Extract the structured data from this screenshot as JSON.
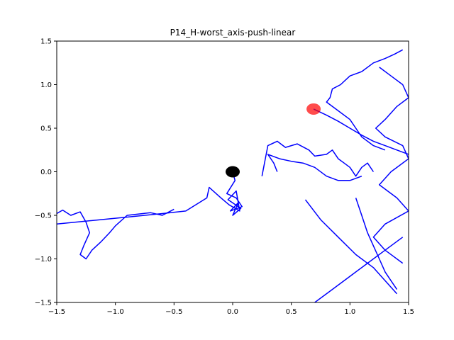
{
  "chart_data": {
    "type": "line",
    "title": "P14_H-worst_axis-push-linear",
    "xlabel": "",
    "ylabel": "",
    "xlim": [
      -1.5,
      1.5
    ],
    "ylim": [
      -1.5,
      1.5
    ],
    "grid": false,
    "x_ticks": [
      "−1.5",
      "−1.0",
      "−0.5",
      "0.0",
      "0.5",
      "1.0",
      "1.5"
    ],
    "y_ticks": [
      "−1.5",
      "−1.0",
      "−0.5",
      "0.0",
      "0.5",
      "1.0",
      "1.5"
    ],
    "x_tick_values": [
      -1.5,
      -1.0,
      -0.5,
      0.0,
      0.5,
      1.0,
      1.5
    ],
    "y_tick_values": [
      -1.5,
      -1.0,
      -0.5,
      0.0,
      0.5,
      1.0,
      1.5
    ],
    "colors": {
      "path": "#0000ff",
      "start": "#000000",
      "goal": "#ff0000"
    },
    "start_marker": {
      "x": 0.0,
      "y": 0.0
    },
    "goal_marker": {
      "x": 0.69,
      "y": 0.72
    },
    "series": [
      {
        "x": [
          0.0,
          0.02,
          -0.05,
          0.03,
          0.08,
          -0.02,
          0.05,
          0.0,
          0.07,
          -0.04,
          0.03,
          0.06,
          -0.03,
          -0.1,
          -0.2,
          -0.22,
          -0.4,
          -0.6,
          -0.9,
          -1.2,
          -1.5
        ],
        "y": [
          0.0,
          -0.1,
          -0.25,
          -0.3,
          -0.4,
          -0.45,
          -0.35,
          -0.5,
          -0.42,
          -0.32,
          -0.22,
          -0.45,
          -0.38,
          -0.3,
          -0.18,
          -0.3,
          -0.45,
          -0.48,
          -0.52,
          -0.56,
          -0.6
        ]
      },
      {
        "x": [
          -1.5,
          -1.45,
          -1.38,
          -1.3,
          -1.25,
          -1.22,
          -1.27,
          -1.3,
          -1.25,
          -1.2,
          -1.12,
          -1.05,
          -1.0,
          -0.9,
          -0.7,
          -0.6,
          -0.5
        ],
        "y": [
          -0.48,
          -0.44,
          -0.5,
          -0.46,
          -0.58,
          -0.7,
          -0.85,
          -0.95,
          -1.0,
          -0.9,
          -0.8,
          -0.7,
          -0.62,
          -0.5,
          -0.47,
          -0.5,
          -0.43
        ]
      },
      {
        "x": [
          0.25,
          0.3,
          0.38,
          0.45,
          0.55,
          0.65,
          0.7,
          0.8,
          0.85,
          0.9,
          0.95,
          1.0,
          1.05,
          1.1,
          1.15,
          1.2
        ],
        "y": [
          -0.05,
          0.3,
          0.35,
          0.28,
          0.32,
          0.25,
          0.18,
          0.2,
          0.25,
          0.15,
          0.1,
          0.05,
          -0.05,
          0.05,
          0.1,
          0.0
        ]
      },
      {
        "x": [
          0.38,
          0.35,
          0.3,
          0.4,
          0.5,
          0.6,
          0.7,
          0.8,
          0.9,
          1.0,
          1.1
        ],
        "y": [
          0.0,
          0.1,
          0.2,
          0.15,
          0.12,
          0.1,
          0.05,
          -0.05,
          -0.1,
          -0.1,
          -0.05
        ]
      },
      {
        "x": [
          0.69,
          0.8,
          0.9,
          1.0,
          1.1,
          1.2,
          1.3,
          1.4,
          1.5
        ],
        "y": [
          0.72,
          0.65,
          0.58,
          0.5,
          0.42,
          0.35,
          0.3,
          0.25,
          0.2
        ]
      },
      {
        "x": [
          0.62,
          0.75,
          0.9,
          1.05,
          1.2,
          1.3,
          1.4
        ],
        "y": [
          -0.32,
          -0.55,
          -0.75,
          -0.95,
          -1.1,
          -1.25,
          -1.4
        ]
      },
      {
        "x": [
          0.7,
          0.85,
          1.0,
          1.15,
          1.3,
          1.45
        ],
        "y": [
          -1.5,
          -1.35,
          -1.2,
          -1.05,
          -0.9,
          -0.75
        ]
      },
      {
        "x": [
          1.25,
          1.35,
          1.45,
          1.5,
          1.4,
          1.3,
          1.22,
          1.3,
          1.45,
          1.5,
          1.35,
          1.25,
          1.4,
          1.5,
          1.3,
          1.2,
          1.3,
          1.45
        ],
        "y": [
          1.2,
          1.1,
          1.0,
          0.85,
          0.75,
          0.6,
          0.5,
          0.4,
          0.3,
          0.15,
          0.0,
          -0.15,
          -0.3,
          -0.45,
          -0.6,
          -0.75,
          -0.9,
          -1.05
        ]
      },
      {
        "x": [
          1.45,
          1.38,
          1.3,
          1.2,
          1.1,
          1.0,
          0.92,
          0.85,
          0.83,
          0.8,
          0.9,
          1.0,
          1.05,
          1.1,
          1.2,
          1.3
        ],
        "y": [
          1.4,
          1.35,
          1.3,
          1.25,
          1.15,
          1.1,
          1.0,
          0.95,
          0.85,
          0.8,
          0.7,
          0.6,
          0.5,
          0.4,
          0.3,
          0.25
        ]
      },
      {
        "x": [
          1.05,
          1.1,
          1.15,
          1.2,
          1.25,
          1.3,
          1.35,
          1.4
        ],
        "y": [
          -0.3,
          -0.5,
          -0.7,
          -0.85,
          -1.0,
          -1.15,
          -1.25,
          -1.35
        ]
      }
    ]
  }
}
